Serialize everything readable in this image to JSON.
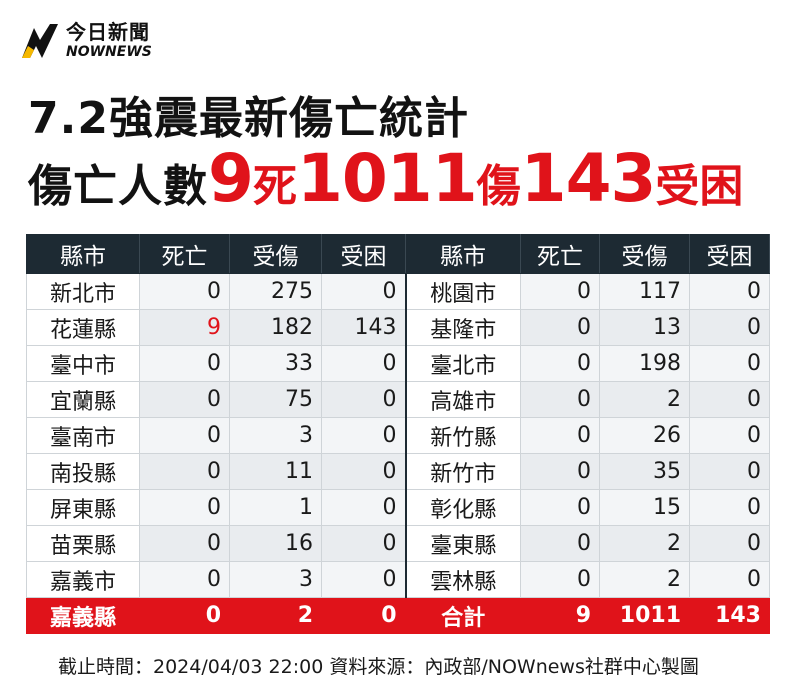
{
  "logo": {
    "cn": "今日新聞",
    "en": "NOWNEWS"
  },
  "title": {
    "line1": "7.2強震最新傷亡統計",
    "label": "傷亡人數",
    "deaths": "9",
    "deaths_word": "死",
    "injured": "1011",
    "injured_word": "傷",
    "trapped": "143",
    "trapped_word": "受困"
  },
  "table": {
    "headers": [
      "縣市",
      "死亡",
      "受傷",
      "受困",
      "縣市",
      "死亡",
      "受傷",
      "受困"
    ],
    "left_rows": [
      {
        "city": "新北市",
        "dead": "0",
        "injured": "275",
        "trapped": "0"
      },
      {
        "city": "花蓮縣",
        "dead": "9",
        "injured": "182",
        "trapped": "143"
      },
      {
        "city": "臺中市",
        "dead": "0",
        "injured": "33",
        "trapped": "0"
      },
      {
        "city": "宜蘭縣",
        "dead": "0",
        "injured": "75",
        "trapped": "0"
      },
      {
        "city": "臺南市",
        "dead": "0",
        "injured": "3",
        "trapped": "0"
      },
      {
        "city": "南投縣",
        "dead": "0",
        "injured": "11",
        "trapped": "0"
      },
      {
        "city": "屏東縣",
        "dead": "0",
        "injured": "1",
        "trapped": "0"
      },
      {
        "city": "苗栗縣",
        "dead": "0",
        "injured": "16",
        "trapped": "0"
      },
      {
        "city": "嘉義市",
        "dead": "0",
        "injured": "3",
        "trapped": "0"
      },
      {
        "city": "嘉義縣",
        "dead": "0",
        "injured": "2",
        "trapped": "0"
      }
    ],
    "right_rows": [
      {
        "city": "桃園市",
        "dead": "0",
        "injured": "117",
        "trapped": "0"
      },
      {
        "city": "基隆市",
        "dead": "0",
        "injured": "13",
        "trapped": "0"
      },
      {
        "city": "臺北市",
        "dead": "0",
        "injured": "198",
        "trapped": "0"
      },
      {
        "city": "高雄市",
        "dead": "0",
        "injured": "2",
        "trapped": "0"
      },
      {
        "city": "新竹縣",
        "dead": "0",
        "injured": "26",
        "trapped": "0"
      },
      {
        "city": "新竹市",
        "dead": "0",
        "injured": "35",
        "trapped": "0"
      },
      {
        "city": "彰化縣",
        "dead": "0",
        "injured": "15",
        "trapped": "0"
      },
      {
        "city": "臺東縣",
        "dead": "0",
        "injured": "2",
        "trapped": "0"
      },
      {
        "city": "雲林縣",
        "dead": "0",
        "injured": "2",
        "trapped": "0"
      }
    ],
    "total": {
      "label": "合計",
      "dead": "9",
      "injured": "1011",
      "trapped": "143"
    }
  },
  "footer": "截止時間：2024/04/03  22:00   資料來源：內政部/NOWnews社群中心製圖",
  "colors": {
    "accent_red": "#e0131a",
    "header_dark": "#1d2a33",
    "logo_yellow": "#f5b800"
  }
}
